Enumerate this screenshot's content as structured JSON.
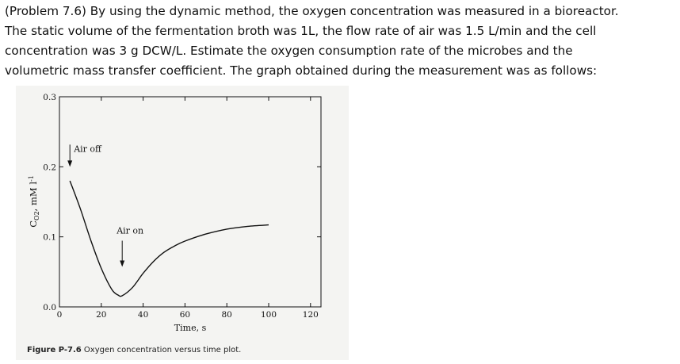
{
  "problem": {
    "lines": [
      "(Problem 7.6) By using the dynamic method, the oxygen concentration was measured in a bioreactor.",
      "The static volume of the fermentation broth was 1L, the flow rate of air was 1.5 L/min and the cell",
      "concentration was 3 g DCW/L. Estimate the oxygen consumption rate of the microbes and the",
      "volumetric mass transfer coefficient. The graph obtained during the measurement was as follows:"
    ]
  },
  "figure": {
    "caption_label": "Figure P-7.6",
    "caption_text": " Oxygen concentration versus time plot."
  },
  "chart_data": {
    "type": "line",
    "title": "",
    "xlabel": "Time, s",
    "ylabel": "CO2, mM l-1",
    "ylabel_parts": {
      "main": "C",
      "sub": "O2",
      "rest": ", mM l",
      "sup": "-1"
    },
    "xlim": [
      0,
      125
    ],
    "ylim": [
      0.0,
      0.3
    ],
    "x_ticks": [
      0,
      20,
      40,
      60,
      80,
      100,
      120
    ],
    "x_tick_labels": [
      "0",
      "20",
      "40",
      "60",
      "80",
      "100",
      "120"
    ],
    "y_ticks": [
      0.0,
      0.1,
      0.2,
      0.3
    ],
    "y_tick_labels": [
      "0.0",
      "0.1",
      "0.2",
      "0.3"
    ],
    "grid": false,
    "series": [
      {
        "x": [
          5,
          10,
          15,
          20,
          25,
          28,
          30,
          35,
          40,
          45,
          50,
          55,
          60,
          70,
          80,
          90,
          100
        ],
        "y": [
          0.18,
          0.14,
          0.095,
          0.055,
          0.025,
          0.017,
          0.016,
          0.028,
          0.048,
          0.065,
          0.078,
          0.087,
          0.094,
          0.104,
          0.111,
          0.115,
          0.117
        ]
      }
    ],
    "annotations": [
      {
        "text": "Air off",
        "x": 5,
        "y": 0.2
      },
      {
        "text": "Air on",
        "x": 30,
        "y": 0.09
      }
    ]
  }
}
